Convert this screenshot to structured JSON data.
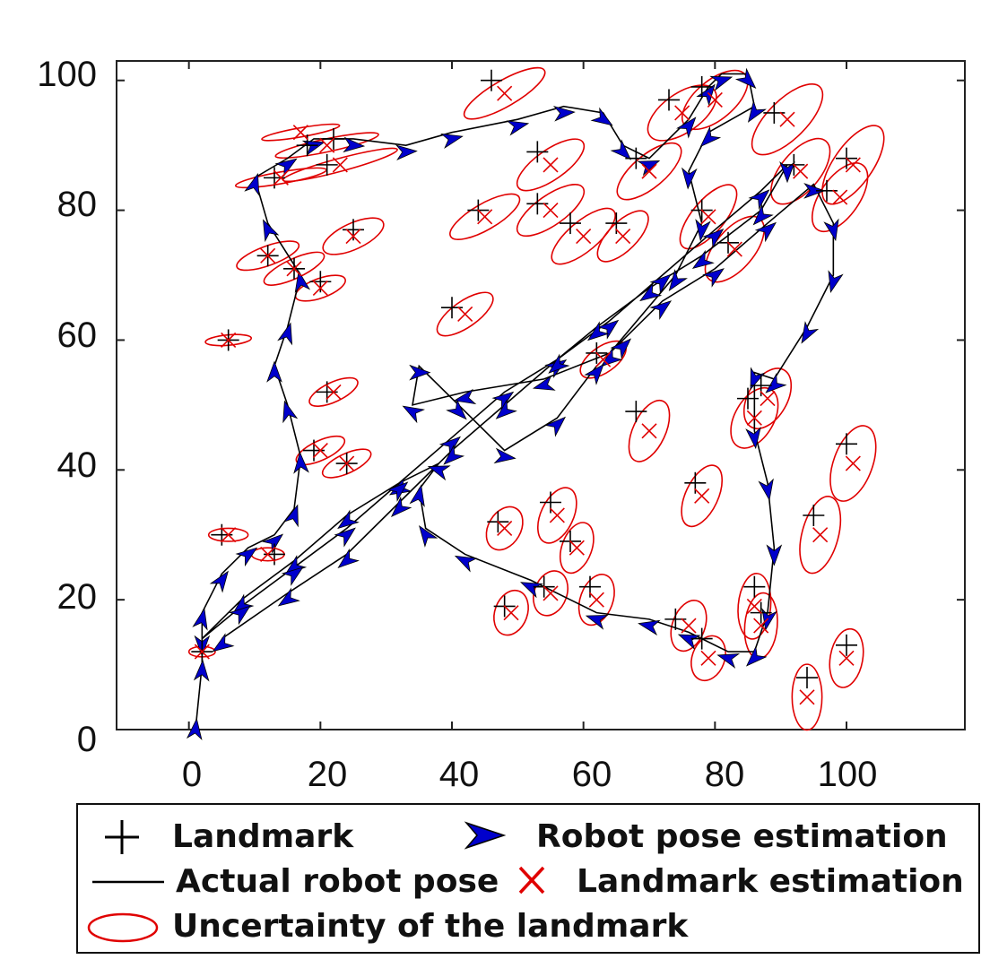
{
  "chart_data": {
    "type": "scatter",
    "title": "",
    "xlabel": "",
    "ylabel": "",
    "xlim": [
      -11,
      118
    ],
    "ylim": [
      0,
      103
    ],
    "x_ticks": [
      0,
      20,
      40,
      60,
      80,
      100
    ],
    "y_ticks": [
      0,
      20,
      40,
      60,
      80,
      100
    ],
    "x_tick_labels": [
      "0",
      "20",
      "40",
      "60",
      "80",
      "100"
    ],
    "y_tick_labels": [
      "0",
      "20",
      "40",
      "60",
      "80",
      "100"
    ],
    "grid": false,
    "legend_position": "bottom",
    "colors": {
      "landmark": "#000000",
      "robot_pose": "#0000cc",
      "actual_path": "#000000",
      "landmark_estimate": "#e00000",
      "uncertainty": "#e00000"
    },
    "legend": {
      "landmark": "Landmark",
      "robot_pose": "Robot pose estimation",
      "actual_path": "Actual robot pose",
      "landmark_estimate": "Landmark estimation",
      "uncertainty": "Uncertainty of the landmark"
    },
    "landmarks": [
      [
        18,
        90
      ],
      [
        22,
        91
      ],
      [
        21,
        87
      ],
      [
        13,
        85
      ],
      [
        12,
        73
      ],
      [
        16,
        71
      ],
      [
        20,
        69
      ],
      [
        25,
        77
      ],
      [
        6,
        60
      ],
      [
        21,
        52
      ],
      [
        19,
        43
      ],
      [
        24,
        41
      ],
      [
        5,
        30
      ],
      [
        13,
        27
      ],
      [
        2,
        12
      ],
      [
        44,
        80
      ],
      [
        40,
        65
      ],
      [
        46,
        100
      ],
      [
        53,
        89
      ],
      [
        53,
        81
      ],
      [
        58,
        78
      ],
      [
        65,
        78
      ],
      [
        68,
        88
      ],
      [
        73,
        97
      ],
      [
        78,
        99
      ],
      [
        78,
        80
      ],
      [
        82,
        75
      ],
      [
        89,
        95
      ],
      [
        92,
        87
      ],
      [
        100,
        88
      ],
      [
        97,
        83
      ],
      [
        62,
        58
      ],
      [
        68,
        49
      ],
      [
        77,
        38
      ],
      [
        85,
        51
      ],
      [
        87,
        53
      ],
      [
        100,
        44
      ],
      [
        47,
        32
      ],
      [
        55,
        35
      ],
      [
        58,
        29
      ],
      [
        48,
        19
      ],
      [
        54,
        22
      ],
      [
        61,
        22
      ],
      [
        74,
        17
      ],
      [
        78,
        14
      ],
      [
        86,
        22
      ],
      [
        87,
        18
      ],
      [
        95,
        33
      ],
      [
        100,
        13
      ],
      [
        94,
        8
      ]
    ],
    "landmark_estimates": [
      [
        17,
        92
      ],
      [
        21,
        90
      ],
      [
        23,
        87
      ],
      [
        14,
        85
      ],
      [
        12,
        73
      ],
      [
        16,
        71
      ],
      [
        20,
        68
      ],
      [
        25,
        76
      ],
      [
        6,
        60
      ],
      [
        22,
        52
      ],
      [
        20,
        43
      ],
      [
        24,
        41
      ],
      [
        6,
        30
      ],
      [
        12,
        27
      ],
      [
        2,
        12
      ],
      [
        45,
        79
      ],
      [
        42,
        64
      ],
      [
        48,
        98
      ],
      [
        55,
        87
      ],
      [
        55,
        80
      ],
      [
        60,
        76
      ],
      [
        66,
        76
      ],
      [
        70,
        86
      ],
      [
        75,
        95
      ],
      [
        80,
        97
      ],
      [
        79,
        79
      ],
      [
        83,
        74
      ],
      [
        91,
        94
      ],
      [
        93,
        86
      ],
      [
        101,
        87
      ],
      [
        99,
        82
      ],
      [
        63,
        57
      ],
      [
        70,
        46
      ],
      [
        78,
        36
      ],
      [
        86,
        48
      ],
      [
        88,
        51
      ],
      [
        101,
        41
      ],
      [
        48,
        31
      ],
      [
        56,
        33
      ],
      [
        59,
        28
      ],
      [
        49,
        18
      ],
      [
        55,
        21
      ],
      [
        62,
        20
      ],
      [
        76,
        16
      ],
      [
        79,
        11
      ],
      [
        86,
        19
      ],
      [
        87,
        16
      ],
      [
        96,
        30
      ],
      [
        100,
        11
      ],
      [
        94,
        5
      ]
    ],
    "uncertainty_ellipses": [
      [
        17,
        92,
        6,
        0.7,
        -10
      ],
      [
        21,
        90,
        8,
        1.0,
        -12
      ],
      [
        23,
        87,
        9,
        1.0,
        -15
      ],
      [
        14,
        85,
        7,
        0.9,
        -10
      ],
      [
        12,
        73,
        5,
        1.5,
        -20
      ],
      [
        16,
        71,
        5,
        1.5,
        -25
      ],
      [
        20,
        68,
        4,
        1.5,
        -20
      ],
      [
        25,
        76,
        5,
        2,
        -25
      ],
      [
        6,
        60,
        3.5,
        0.8,
        -5
      ],
      [
        22,
        52,
        4,
        1.5,
        -25
      ],
      [
        20,
        43,
        4,
        1.5,
        -25
      ],
      [
        24,
        41,
        4,
        1.5,
        -25
      ],
      [
        6,
        30,
        3,
        1,
        0
      ],
      [
        12,
        27,
        2.5,
        1,
        0
      ],
      [
        2,
        12,
        2,
        0.8,
        0
      ],
      [
        45,
        79,
        6,
        2,
        -30
      ],
      [
        42,
        64,
        5,
        2,
        -35
      ],
      [
        48,
        98,
        7,
        2,
        -30
      ],
      [
        55,
        87,
        6,
        2.3,
        -35
      ],
      [
        55,
        80,
        6,
        2.3,
        -35
      ],
      [
        60,
        76,
        6,
        2.3,
        -40
      ],
      [
        66,
        76,
        5,
        2.2,
        -45
      ],
      [
        70,
        86,
        6,
        2.5,
        -40
      ],
      [
        75,
        95,
        6,
        3,
        -35
      ],
      [
        80,
        97,
        6,
        3,
        -40
      ],
      [
        79,
        79,
        6,
        2.5,
        -50
      ],
      [
        83,
        74,
        6,
        3,
        -50
      ],
      [
        91,
        94,
        7,
        3,
        -45
      ],
      [
        93,
        86,
        6,
        3,
        -50
      ],
      [
        101,
        87,
        7,
        3,
        -55
      ],
      [
        99,
        82,
        6,
        3,
        -55
      ],
      [
        63,
        57,
        4,
        2,
        -35
      ],
      [
        70,
        46,
        5,
        2.5,
        -65
      ],
      [
        78,
        36,
        5,
        2.5,
        -65
      ],
      [
        86,
        48,
        5,
        3,
        -60
      ],
      [
        88,
        51,
        5,
        3,
        -60
      ],
      [
        101,
        41,
        6,
        3,
        -70
      ],
      [
        48,
        31,
        3.5,
        2.5,
        -60
      ],
      [
        56,
        33,
        4.5,
        2.5,
        -65
      ],
      [
        59,
        28,
        4,
        2.3,
        -70
      ],
      [
        49,
        18,
        3.5,
        2.5,
        -70
      ],
      [
        55,
        21,
        3.5,
        2.5,
        -70
      ],
      [
        62,
        20,
        4,
        2.5,
        -70
      ],
      [
        76,
        16,
        4,
        2.5,
        -70
      ],
      [
        79,
        11,
        3.5,
        2.5,
        -70
      ],
      [
        86,
        19,
        5,
        2.5,
        -85
      ],
      [
        87,
        16,
        5,
        2.5,
        -85
      ],
      [
        96,
        30,
        6,
        2.8,
        -75
      ],
      [
        100,
        11,
        4.5,
        2.5,
        -80
      ],
      [
        94,
        5,
        5,
        2.3,
        -90
      ]
    ],
    "actual_path": [
      [
        1,
        0
      ],
      [
        2,
        10
      ],
      [
        2,
        18
      ],
      [
        5,
        24
      ],
      [
        9,
        28
      ],
      [
        13,
        30
      ],
      [
        16,
        34
      ],
      [
        17,
        42
      ],
      [
        15,
        50
      ],
      [
        13,
        56
      ],
      [
        15,
        62
      ],
      [
        17,
        70
      ],
      [
        12,
        78
      ],
      [
        10,
        85
      ],
      [
        15,
        88
      ],
      [
        19,
        91
      ],
      [
        25,
        91
      ],
      [
        33,
        90
      ],
      [
        40,
        92
      ],
      [
        50,
        94
      ],
      [
        57,
        96
      ],
      [
        63,
        95
      ],
      [
        66,
        90
      ],
      [
        70,
        88
      ],
      [
        76,
        94
      ],
      [
        79,
        99
      ],
      [
        81,
        101
      ],
      [
        85,
        101
      ],
      [
        86,
        96
      ],
      [
        79,
        92
      ],
      [
        76,
        86
      ],
      [
        78,
        78
      ],
      [
        74,
        70
      ],
      [
        64,
        58
      ],
      [
        54,
        54
      ],
      [
        42,
        52
      ],
      [
        34,
        50
      ],
      [
        35,
        56
      ],
      [
        41,
        50
      ],
      [
        48,
        43
      ],
      [
        56,
        48
      ],
      [
        62,
        56
      ],
      [
        66,
        60
      ],
      [
        72,
        66
      ],
      [
        80,
        71
      ],
      [
        88,
        78
      ],
      [
        95,
        84
      ],
      [
        98,
        78
      ],
      [
        98,
        70
      ],
      [
        94,
        62
      ],
      [
        89,
        54
      ],
      [
        86,
        55
      ],
      [
        86,
        46
      ],
      [
        88,
        38
      ],
      [
        89,
        28
      ],
      [
        88,
        18
      ],
      [
        86,
        12
      ],
      [
        82,
        12
      ],
      [
        76,
        15
      ],
      [
        70,
        17
      ],
      [
        62,
        18
      ],
      [
        52,
        23
      ],
      [
        42,
        27
      ],
      [
        36,
        31
      ],
      [
        35,
        37
      ],
      [
        38,
        41
      ],
      [
        32,
        38
      ],
      [
        24,
        33
      ],
      [
        16,
        26
      ],
      [
        8,
        20
      ],
      [
        2,
        14
      ],
      [
        8,
        19
      ],
      [
        16,
        25
      ],
      [
        24,
        31
      ],
      [
        32,
        38
      ],
      [
        40,
        45
      ],
      [
        48,
        52
      ],
      [
        56,
        57
      ],
      [
        64,
        63
      ],
      [
        72,
        70
      ],
      [
        80,
        77
      ],
      [
        87,
        83
      ],
      [
        91,
        87
      ],
      [
        87,
        80
      ],
      [
        78,
        73
      ],
      [
        70,
        68
      ],
      [
        62,
        62
      ],
      [
        56,
        57
      ],
      [
        48,
        50
      ],
      [
        40,
        43
      ],
      [
        32,
        35
      ],
      [
        24,
        27
      ],
      [
        15,
        21
      ],
      [
        5,
        14
      ]
    ],
    "estimated_path": [
      [
        1,
        0
      ],
      [
        2,
        9
      ],
      [
        2,
        17
      ],
      [
        5,
        23
      ],
      [
        9,
        27
      ],
      [
        13,
        29
      ],
      [
        16,
        33
      ],
      [
        17,
        41
      ],
      [
        15,
        49
      ],
      [
        13,
        55
      ],
      [
        15,
        61
      ],
      [
        17,
        69
      ],
      [
        12,
        77
      ],
      [
        10,
        84
      ],
      [
        15,
        87
      ],
      [
        19,
        90
      ],
      [
        25,
        90
      ],
      [
        33,
        89
      ],
      [
        40,
        91
      ],
      [
        50,
        93
      ],
      [
        57,
        95
      ],
      [
        63,
        94
      ],
      [
        66,
        89
      ],
      [
        70,
        87
      ],
      [
        76,
        93
      ],
      [
        79,
        98
      ],
      [
        81,
        100
      ],
      [
        85,
        100
      ],
      [
        86,
        95
      ],
      [
        79,
        91
      ],
      [
        76,
        85
      ],
      [
        78,
        77
      ],
      [
        74,
        69
      ],
      [
        64,
        57
      ],
      [
        54,
        53
      ],
      [
        42,
        51
      ],
      [
        34,
        49
      ],
      [
        35,
        55
      ],
      [
        41,
        49
      ],
      [
        48,
        42
      ],
      [
        56,
        47
      ],
      [
        62,
        55
      ],
      [
        66,
        59
      ],
      [
        72,
        65
      ],
      [
        80,
        70
      ],
      [
        88,
        77
      ],
      [
        95,
        83
      ],
      [
        98,
        77
      ],
      [
        98,
        69
      ],
      [
        94,
        61
      ],
      [
        89,
        53
      ],
      [
        86,
        54
      ],
      [
        86,
        45
      ],
      [
        88,
        37
      ],
      [
        89,
        27
      ],
      [
        88,
        17
      ],
      [
        86,
        11
      ],
      [
        82,
        11
      ],
      [
        76,
        14
      ],
      [
        70,
        16
      ],
      [
        62,
        17
      ],
      [
        52,
        22
      ],
      [
        42,
        26
      ],
      [
        36,
        30
      ],
      [
        35,
        36
      ],
      [
        38,
        40
      ],
      [
        32,
        37
      ],
      [
        24,
        32
      ],
      [
        16,
        25
      ],
      [
        8,
        19
      ],
      [
        2,
        13
      ],
      [
        8,
        18
      ],
      [
        16,
        24
      ],
      [
        24,
        30
      ],
      [
        32,
        37
      ],
      [
        40,
        44
      ],
      [
        48,
        51
      ],
      [
        56,
        56
      ],
      [
        64,
        62
      ],
      [
        72,
        69
      ],
      [
        80,
        76
      ],
      [
        87,
        82
      ],
      [
        91,
        86
      ],
      [
        87,
        79
      ],
      [
        78,
        72
      ],
      [
        70,
        67
      ],
      [
        62,
        61
      ],
      [
        56,
        56
      ],
      [
        48,
        49
      ],
      [
        40,
        42
      ],
      [
        32,
        34
      ],
      [
        24,
        26
      ],
      [
        15,
        20
      ],
      [
        5,
        13
      ]
    ]
  }
}
